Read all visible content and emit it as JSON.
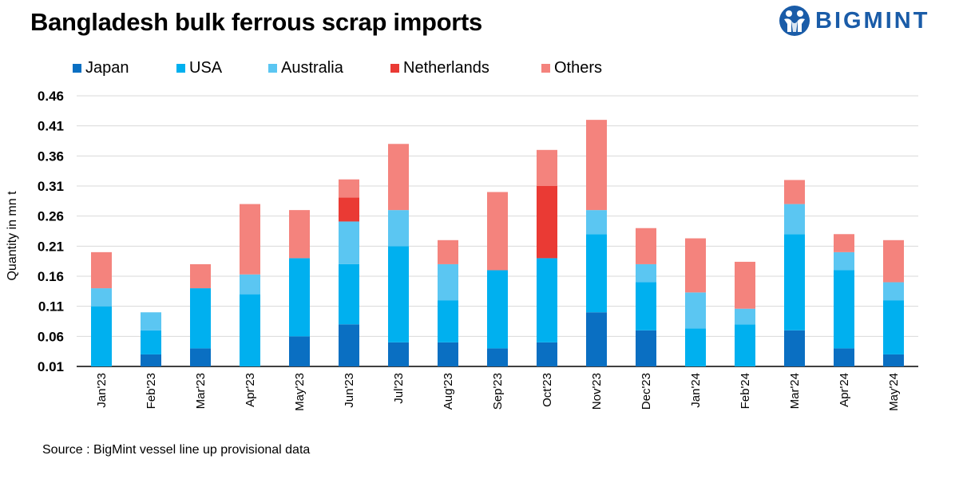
{
  "header": {
    "title": "Bangladesh bulk ferrous scrap imports",
    "logo_text": "BIGMINT",
    "logo_icon": "bigmint-logo-icon"
  },
  "footer": {
    "source": "Source : BigMint vessel line up provisional data"
  },
  "colors": {
    "Japan": "#0a6fc2",
    "USA": "#00b0ef",
    "Australia": "#5bc6f2",
    "Netherlands": "#ea3a34",
    "Others": "#f4837d",
    "grid": "#d9d9d9",
    "axis": "#000000",
    "logo": "#1a5ca8"
  },
  "chart_data": {
    "type": "bar",
    "stacked": true,
    "title": "Bangladesh bulk ferrous scrap imports",
    "xlabel": "",
    "ylabel": "Quantity in mn t",
    "ylim": [
      0.01,
      0.46
    ],
    "yticks": [
      "0.01",
      "0.06",
      "0.11",
      "0.16",
      "0.21",
      "0.26",
      "0.31",
      "0.36",
      "0.41",
      "0.46"
    ],
    "grid": true,
    "legend_position": "top",
    "categories": [
      "Jan'23",
      "Feb'23",
      "Mar'23",
      "Apr'23",
      "May'23",
      "Jun'23",
      "Jul'23",
      "Aug'23",
      "Sep'23",
      "Oct'23",
      "Nov'23",
      "Dec'23",
      "Jan'24",
      "Feb'24",
      "Mar'24",
      "Apr'24",
      "May'24"
    ],
    "series": [
      {
        "name": "Japan",
        "values": [
          0.0,
          0.02,
          0.03,
          0.0,
          0.05,
          0.07,
          0.04,
          0.04,
          0.03,
          0.04,
          0.09,
          0.06,
          0.0,
          0.0,
          0.06,
          0.03,
          0.02
        ]
      },
      {
        "name": "USA",
        "values": [
          0.1,
          0.04,
          0.1,
          0.12,
          0.13,
          0.1,
          0.16,
          0.07,
          0.13,
          0.14,
          0.13,
          0.08,
          0.063,
          0.07,
          0.16,
          0.13,
          0.09
        ]
      },
      {
        "name": "Australia",
        "values": [
          0.03,
          0.03,
          0.0,
          0.033,
          0.0,
          0.071,
          0.06,
          0.06,
          0.0,
          0.0,
          0.04,
          0.03,
          0.06,
          0.026,
          0.05,
          0.03,
          0.03
        ]
      },
      {
        "name": "Netherlands",
        "values": [
          0.0,
          0.0,
          0.0,
          0.0,
          0.0,
          0.04,
          0.0,
          0.0,
          0.0,
          0.12,
          0.0,
          0.0,
          0.0,
          0.0,
          0.0,
          0.0,
          0.0
        ]
      },
      {
        "name": "Others",
        "values": [
          0.06,
          0.0,
          0.04,
          0.117,
          0.08,
          0.03,
          0.11,
          0.04,
          0.13,
          0.06,
          0.15,
          0.06,
          0.09,
          0.078,
          0.04,
          0.03,
          0.07
        ]
      }
    ]
  }
}
